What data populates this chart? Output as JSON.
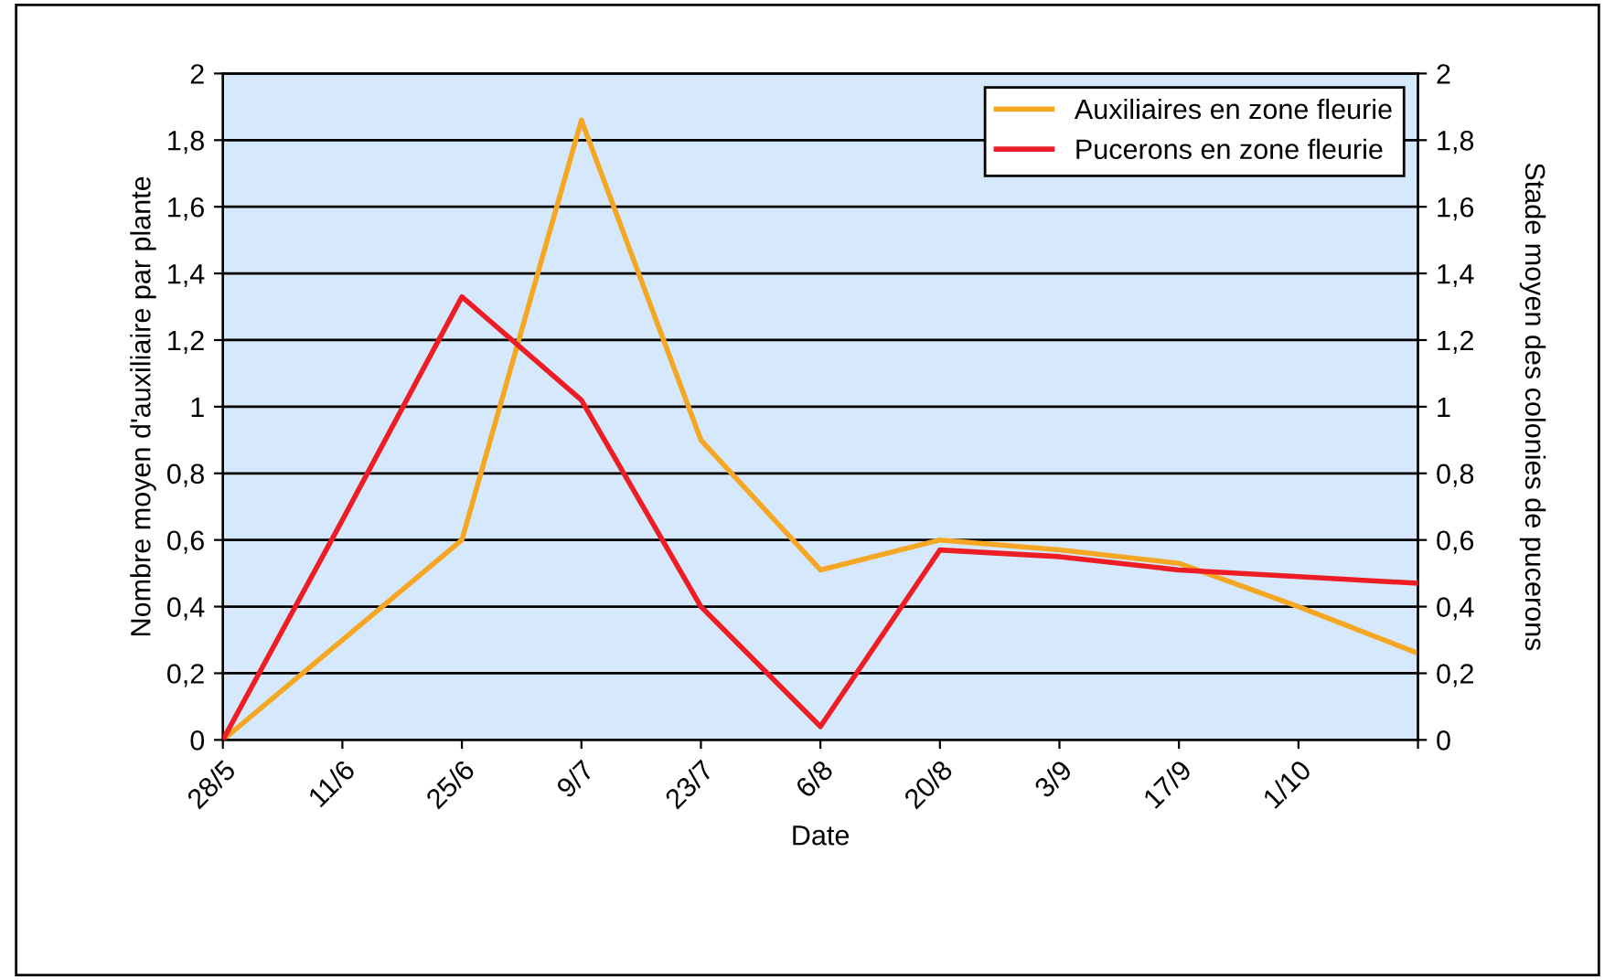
{
  "chart_data": {
    "type": "line",
    "xlabel": "Date",
    "ylabel": "Nombre moyen d'auxiliaire par plante",
    "y2label": "Stade moyen des colonies de pucerons",
    "categories": [
      "28/5",
      "11/6",
      "25/6",
      "9/7",
      "23/7",
      "6/8",
      "20/8",
      "3/9",
      "17/9",
      "1/10",
      null
    ],
    "series": [
      {
        "name": "Auxiliaires en zone fleurie",
        "color": "#f5a623",
        "values": [
          0,
          0.3,
          0.6,
          1.86,
          0.9,
          0.51,
          0.6,
          0.57,
          0.53,
          0.4,
          0.26
        ]
      },
      {
        "name": "Pucerons en zone fleurie",
        "color": "#ee1c25",
        "axis": "y2",
        "values": [
          0,
          0.66,
          1.33,
          1.02,
          0.4,
          0.04,
          0.57,
          0.55,
          0.51,
          0.49,
          0.47
        ]
      }
    ],
    "ylim": [
      0,
      2
    ],
    "yticks": [
      0,
      {
        "value": 0.2,
        "label": "0,2"
      },
      {
        "value": 0.4,
        "label": "0,4"
      },
      {
        "value": 0.6,
        "label": "0,6"
      },
      {
        "value": 0.8,
        "label": "0,8"
      },
      1,
      {
        "value": 1.2,
        "label": "1,2"
      },
      {
        "value": 1.4,
        "label": "1,4"
      },
      {
        "value": 1.6,
        "label": "1,6"
      },
      {
        "value": 1.8,
        "label": "1,8"
      },
      2
    ],
    "y2lim": [
      0,
      2
    ],
    "y2ticks": [
      0,
      {
        "value": 0.2,
        "label": "0,2"
      },
      {
        "value": 0.4,
        "label": "0,4"
      },
      {
        "value": 0.6,
        "label": "0,6"
      },
      {
        "value": 0.8,
        "label": "0,8"
      },
      1,
      {
        "value": 1.2,
        "label": "1,2"
      },
      {
        "value": 1.4,
        "label": "1,4"
      },
      {
        "value": 1.6,
        "label": "1,6"
      },
      {
        "value": 1.8,
        "label": "1,8"
      },
      2
    ],
    "grid": "y",
    "legend": "top right",
    "marker": "none",
    "line_style": "solid"
  }
}
